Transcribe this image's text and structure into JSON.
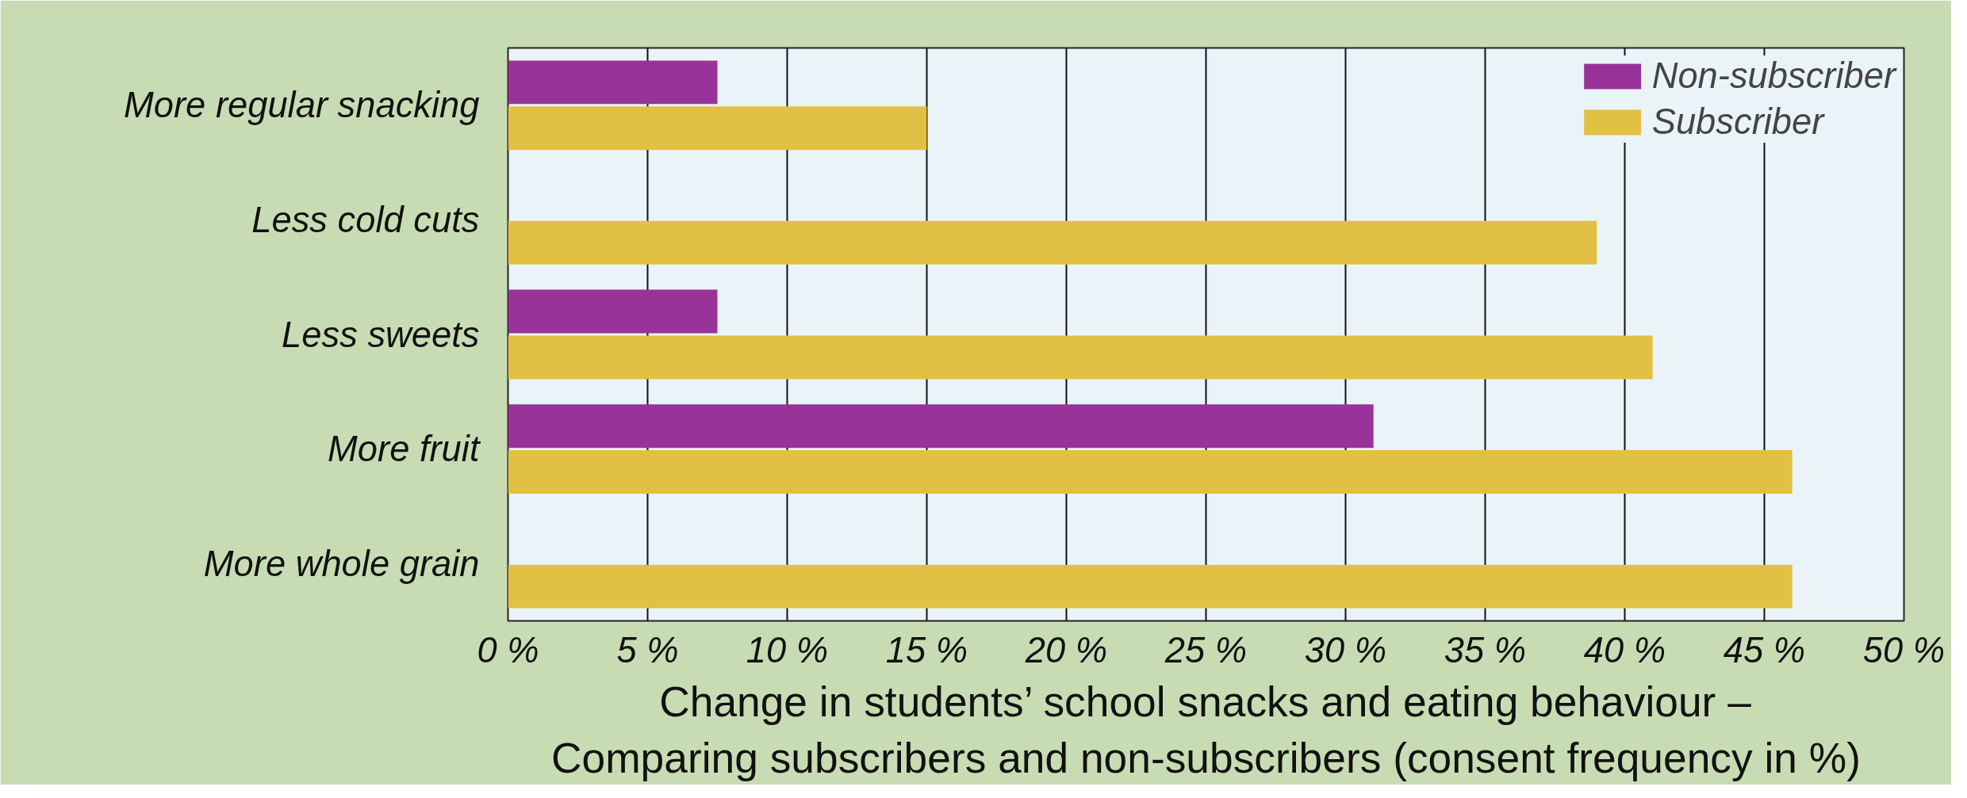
{
  "chart_data": {
    "type": "bar",
    "orientation": "horizontal",
    "title": "Change in students’ school snacks and eating behaviour –\nComparing subscribers and non-subscribers (consent frequency in %)",
    "categories": [
      "More regular snacking",
      "Less cold cuts",
      "Less sweets",
      "More fruit",
      "More whole grain"
    ],
    "series": [
      {
        "name": "Non-subscriber",
        "color": "#993399",
        "values": [
          7.5,
          null,
          7.5,
          31,
          null
        ]
      },
      {
        "name": "Subscriber",
        "color": "#e2c044",
        "values": [
          15,
          39,
          41,
          46,
          46
        ]
      }
    ],
    "xlim": [
      0,
      50
    ],
    "xticks": [
      {
        "value": 0,
        "label": "0 %"
      },
      {
        "value": 5,
        "label": "5 %"
      },
      {
        "value": 10,
        "label": "10 %"
      },
      {
        "value": 15,
        "label": "15 %"
      },
      {
        "value": 20,
        "label": "20 %"
      },
      {
        "value": 25,
        "label": "25 %"
      },
      {
        "value": 30,
        "label": "30 %"
      },
      {
        "value": 35,
        "label": "35 %"
      },
      {
        "value": 40,
        "label": "40 %"
      },
      {
        "value": 45,
        "label": "45 %"
      },
      {
        "value": 50,
        "label": "50 %"
      }
    ],
    "grid": "x",
    "legend": "top right"
  }
}
